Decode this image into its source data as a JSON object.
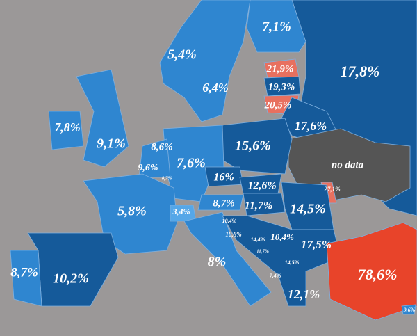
{
  "labels": [
    "7,1%",
    "5,4%",
    "17,8%",
    "21,9%",
    "19,3%",
    "6,4%",
    "20,5%",
    "7,8%",
    "9,1%",
    "17,6%",
    "8,6%",
    "15,6%",
    "7,6%",
    "9,6%",
    "8,7%",
    "no data",
    "16%",
    "12,6%",
    "27,1%",
    "5,8%",
    "3,4%",
    "8,7%",
    "11,7%",
    "14,5%",
    "10,4%",
    "10,8%",
    "14,4%",
    "10,4%",
    "11,7%",
    "17,5%",
    "14,5%",
    "8%",
    "8,7%",
    "10,2%",
    "7,4%",
    "78,6%",
    "12,1%",
    "9,6%"
  ]
}
